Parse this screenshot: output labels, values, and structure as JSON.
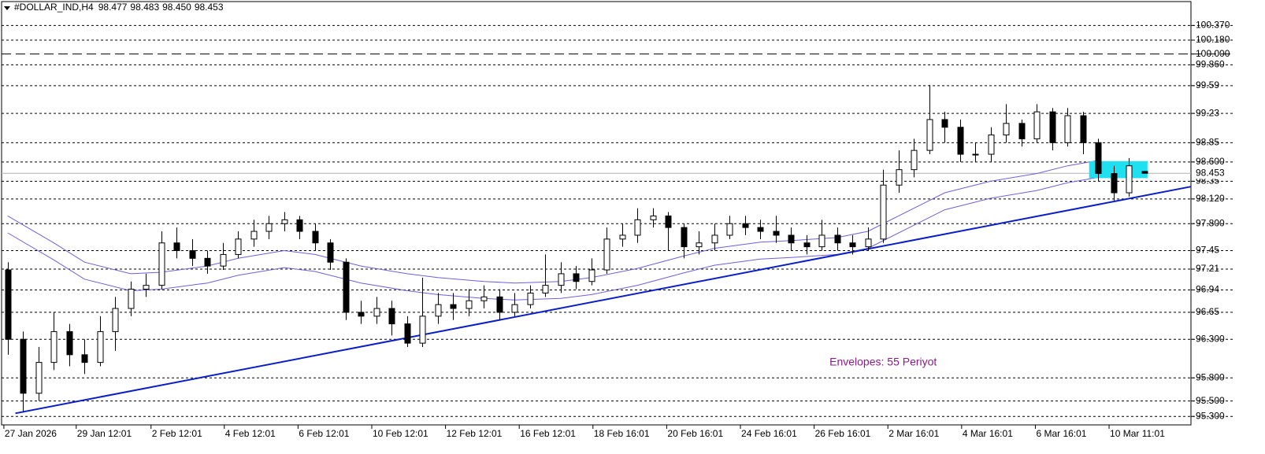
{
  "chart_data": {
    "type": "candlestick",
    "title": "#DOLLAR_IND,H4",
    "ohlc_value_labels": [
      "98.477",
      "98.483",
      "98.450",
      "98.453"
    ],
    "open": [
      97.2,
      96.3,
      95.6,
      96.0,
      96.4,
      96.1,
      96.0,
      96.4,
      96.7,
      96.95,
      97.0,
      97.55,
      97.45,
      97.35,
      97.25,
      97.4,
      97.6,
      97.7,
      97.8,
      97.85,
      97.7,
      97.55,
      97.3,
      96.65,
      96.6,
      96.7,
      96.5,
      96.25,
      96.6,
      96.75,
      96.7,
      96.8,
      96.85,
      96.65,
      96.75,
      96.9,
      97.0,
      97.15,
      97.05,
      97.2,
      97.6,
      97.65,
      97.85,
      97.9,
      97.75,
      97.5,
      97.55,
      97.65,
      97.8,
      97.75,
      97.7,
      97.65,
      97.55,
      97.5,
      97.65,
      97.55,
      97.5,
      97.6,
      98.3,
      98.5,
      98.75,
      99.15,
      99.05,
      98.7,
      98.7,
      98.95,
      99.1,
      98.9,
      99.25,
      98.85,
      99.2,
      98.85,
      98.45,
      98.2,
      98.477
    ],
    "high": [
      97.3,
      96.4,
      96.2,
      96.65,
      96.5,
      96.3,
      96.6,
      96.85,
      97.05,
      97.15,
      97.7,
      97.75,
      97.6,
      97.45,
      97.55,
      97.7,
      97.85,
      97.9,
      97.95,
      97.9,
      97.8,
      97.6,
      97.35,
      96.8,
      96.85,
      96.8,
      96.6,
      97.1,
      96.9,
      96.9,
      96.95,
      97.0,
      96.95,
      96.9,
      97.0,
      97.4,
      97.3,
      97.25,
      97.35,
      97.75,
      97.8,
      98.0,
      98.0,
      97.95,
      97.8,
      97.7,
      97.8,
      97.9,
      97.9,
      97.85,
      97.9,
      97.75,
      97.65,
      97.85,
      97.75,
      97.65,
      97.75,
      98.5,
      98.75,
      98.9,
      99.6,
      99.25,
      99.15,
      98.85,
      99.05,
      99.35,
      99.15,
      99.35,
      99.3,
      99.3,
      99.25,
      98.9,
      98.55,
      98.65,
      98.483
    ],
    "low": [
      96.1,
      95.35,
      95.5,
      95.9,
      95.95,
      95.85,
      95.95,
      96.15,
      96.6,
      96.85,
      96.95,
      97.35,
      97.25,
      97.15,
      97.2,
      97.35,
      97.5,
      97.6,
      97.7,
      97.6,
      97.45,
      97.2,
      96.55,
      96.5,
      96.5,
      96.35,
      96.2,
      96.2,
      96.5,
      96.55,
      96.6,
      96.7,
      96.55,
      96.6,
      96.7,
      96.85,
      96.9,
      96.95,
      97.0,
      97.15,
      97.5,
      97.55,
      97.75,
      97.45,
      97.35,
      97.4,
      97.45,
      97.6,
      97.65,
      97.6,
      97.55,
      97.45,
      97.4,
      97.45,
      97.45,
      97.4,
      97.45,
      97.55,
      98.2,
      98.4,
      98.7,
      98.85,
      98.6,
      98.6,
      98.6,
      98.85,
      98.8,
      98.85,
      98.75,
      98.8,
      98.7,
      98.35,
      98.1,
      98.15,
      98.45
    ],
    "close": [
      96.3,
      95.6,
      96.0,
      96.4,
      96.1,
      96.0,
      96.4,
      96.7,
      96.95,
      97.0,
      97.55,
      97.45,
      97.35,
      97.25,
      97.4,
      97.6,
      97.7,
      97.8,
      97.85,
      97.7,
      97.55,
      97.3,
      96.65,
      96.6,
      96.7,
      96.5,
      96.25,
      96.6,
      96.75,
      96.7,
      96.8,
      96.85,
      96.65,
      96.75,
      96.9,
      97.0,
      97.15,
      97.05,
      97.2,
      97.6,
      97.65,
      97.85,
      97.9,
      97.75,
      97.5,
      97.55,
      97.65,
      97.8,
      97.75,
      97.7,
      97.65,
      97.55,
      97.5,
      97.65,
      97.55,
      97.5,
      97.6,
      98.3,
      98.5,
      98.75,
      99.15,
      99.05,
      98.7,
      98.7,
      98.95,
      99.1,
      98.9,
      99.25,
      98.85,
      99.2,
      98.85,
      98.45,
      98.2,
      98.55,
      98.453
    ],
    "xlim": [
      -0.4,
      77.03
    ],
    "ylim": [
      95.19,
      100.68
    ],
    "xticks": [
      {
        "value": -0.25,
        "label": "27 Jan 2026"
      },
      {
        "value": 4.46,
        "label": "29 Jan 12:01"
      },
      {
        "value": 9.33,
        "label": "2 Feb 12:01"
      },
      {
        "value": 14.1,
        "label": "4 Feb 12:01"
      },
      {
        "value": 18.9,
        "label": "6 Feb 12:01"
      },
      {
        "value": 23.7,
        "label": "10 Feb 12:01"
      },
      {
        "value": 28.5,
        "label": "12 Feb 12:01"
      },
      {
        "value": 33.3,
        "label": "16 Feb 12:01"
      },
      {
        "value": 38.1,
        "label": "18 Feb 16:01"
      },
      {
        "value": 42.9,
        "label": "20 Feb 16:01"
      },
      {
        "value": 47.7,
        "label": "24 Feb 16:01"
      },
      {
        "value": 52.5,
        "label": "26 Feb 16:01"
      },
      {
        "value": 57.3,
        "label": "2 Mar 16:01"
      },
      {
        "value": 62.1,
        "label": "4 Mar 16:01"
      },
      {
        "value": 66.9,
        "label": "6 Mar 16:01"
      },
      {
        "value": 71.7,
        "label": "10 Mar 11:01"
      }
    ],
    "yticks": [
      {
        "value": 100.37,
        "label": "100.370"
      },
      {
        "value": 100.18,
        "label": "100.180"
      },
      {
        "value": 100.0,
        "label": "100.000",
        "style": "long-dash"
      },
      {
        "value": 99.86,
        "label": "99.860"
      },
      99.59,
      99.23,
      98.85,
      {
        "value": 98.6,
        "label": "98.600"
      },
      98.35,
      {
        "value": 98.12,
        "label": "98.120"
      },
      {
        "value": 97.8,
        "label": "97.800"
      },
      97.45,
      97.21,
      96.94,
      96.65,
      {
        "value": 96.3,
        "label": "96.300"
      },
      {
        "value": 95.8,
        "label": "95.800"
      },
      {
        "value": 95.5,
        "label": "95.500"
      },
      {
        "value": 95.3,
        "label": "95.300"
      }
    ],
    "up_color": "#ffffff",
    "down_color": "#000000",
    "envelopes": {
      "color": "#6f5fdc",
      "x": [
        0,
        3,
        5,
        8,
        10,
        13,
        15,
        18,
        20,
        23,
        26,
        28,
        31,
        33,
        36,
        38,
        41,
        44,
        46,
        49,
        51,
        54,
        56,
        59,
        61,
        64,
        67,
        69,
        71
      ],
      "upper": [
        97.9,
        97.55,
        97.3,
        97.15,
        97.17,
        97.25,
        97.35,
        97.45,
        97.4,
        97.25,
        97.15,
        97.1,
        97.05,
        97.03,
        97.05,
        97.1,
        97.22,
        97.38,
        97.48,
        97.56,
        97.58,
        97.62,
        97.7,
        98.0,
        98.2,
        98.35,
        98.45,
        98.55,
        98.62
      ],
      "lower": [
        97.68,
        97.33,
        97.08,
        96.93,
        96.95,
        97.03,
        97.13,
        97.23,
        97.18,
        97.03,
        96.93,
        96.88,
        96.83,
        96.81,
        96.83,
        96.88,
        97.0,
        97.16,
        97.26,
        97.34,
        97.36,
        97.4,
        97.48,
        97.78,
        97.98,
        98.13,
        98.23,
        98.33,
        98.4
      ]
    },
    "trendline": {
      "color": "#0a1ec8",
      "x": [
        0.5,
        77.03
      ],
      "values": [
        95.34,
        98.28
      ]
    },
    "rectangle": {
      "color": "#1ee0f0",
      "x": [
        70.4,
        74.2
      ],
      "y": [
        98.39,
        98.61
      ]
    },
    "annotation": {
      "text": "Envelopes: 55 Periyot",
      "color": "#8b1a8b",
      "x": 53.5,
      "y": 96.0
    }
  }
}
